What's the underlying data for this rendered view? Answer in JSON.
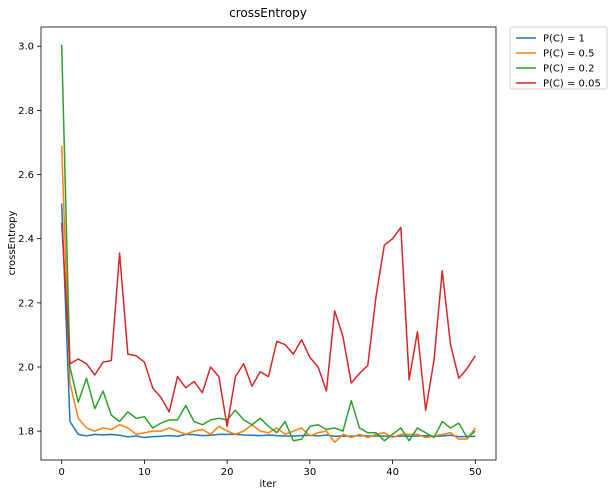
{
  "chart_data": {
    "type": "line",
    "title": "crossEntropy",
    "xlabel": "iter",
    "ylabel": "crossEntropy",
    "xlim": [
      -2.5,
      52.5
    ],
    "ylim": [
      1.71,
      3.06
    ],
    "xticks": [
      0,
      10,
      20,
      30,
      40,
      50
    ],
    "yticks": [
      1.8,
      2.0,
      2.2,
      2.4,
      2.6,
      2.8,
      3.0
    ],
    "grid": false,
    "legend_position": "outside-top-right",
    "x": [
      0,
      1,
      2,
      3,
      4,
      5,
      6,
      7,
      8,
      9,
      10,
      11,
      12,
      13,
      14,
      15,
      16,
      17,
      18,
      19,
      20,
      21,
      22,
      23,
      24,
      25,
      26,
      27,
      28,
      29,
      30,
      31,
      32,
      33,
      34,
      35,
      36,
      37,
      38,
      39,
      40,
      41,
      42,
      43,
      44,
      45,
      46,
      47,
      48,
      49,
      50
    ],
    "series": [
      {
        "name": "P(C) = 1",
        "color": "#1f77b4",
        "values": [
          2.51,
          1.83,
          1.79,
          1.785,
          1.79,
          1.788,
          1.79,
          1.787,
          1.782,
          1.785,
          1.78,
          1.783,
          1.784,
          1.786,
          1.784,
          1.79,
          1.789,
          1.786,
          1.787,
          1.79,
          1.79,
          1.79,
          1.788,
          1.787,
          1.786,
          1.788,
          1.786,
          1.785,
          1.785,
          1.786,
          1.787,
          1.785,
          1.788,
          1.784,
          1.785,
          1.784,
          1.786,
          1.785,
          1.785,
          1.785,
          1.783,
          1.785,
          1.784,
          1.785,
          1.786,
          1.784,
          1.785,
          1.787,
          1.783,
          1.783,
          1.784
        ]
      },
      {
        "name": "P(C) = 0.5",
        "color": "#ff7f0e",
        "values": [
          2.69,
          1.95,
          1.84,
          1.81,
          1.8,
          1.81,
          1.805,
          1.82,
          1.81,
          1.79,
          1.795,
          1.8,
          1.8,
          1.81,
          1.8,
          1.79,
          1.8,
          1.805,
          1.79,
          1.815,
          1.8,
          1.79,
          1.8,
          1.82,
          1.8,
          1.795,
          1.81,
          1.79,
          1.8,
          1.81,
          1.785,
          1.795,
          1.8,
          1.765,
          1.79,
          1.78,
          1.79,
          1.78,
          1.79,
          1.795,
          1.78,
          1.79,
          1.79,
          1.79,
          1.78,
          1.785,
          1.79,
          1.795,
          1.775,
          1.775,
          1.81
        ]
      },
      {
        "name": "P(C) = 0.2",
        "color": "#2ca02c",
        "values": [
          3.005,
          2.0,
          1.89,
          1.965,
          1.87,
          1.925,
          1.85,
          1.83,
          1.86,
          1.84,
          1.845,
          1.81,
          1.825,
          1.835,
          1.835,
          1.88,
          1.83,
          1.82,
          1.835,
          1.84,
          1.835,
          1.865,
          1.835,
          1.82,
          1.84,
          1.815,
          1.795,
          1.83,
          1.77,
          1.775,
          1.815,
          1.82,
          1.805,
          1.81,
          1.8,
          1.895,
          1.81,
          1.795,
          1.795,
          1.77,
          1.79,
          1.81,
          1.77,
          1.81,
          1.795,
          1.78,
          1.83,
          1.81,
          1.825,
          1.78,
          1.8
        ]
      },
      {
        "name": "P(C) = 0.05",
        "color": "#d62728",
        "values": [
          2.45,
          2.01,
          2.025,
          2.01,
          1.975,
          2.015,
          2.02,
          2.355,
          2.04,
          2.035,
          2.015,
          1.935,
          1.905,
          1.86,
          1.97,
          1.935,
          1.955,
          1.92,
          2.0,
          1.97,
          1.815,
          1.97,
          2.01,
          1.94,
          1.985,
          1.97,
          2.08,
          2.07,
          2.04,
          2.085,
          2.03,
          2.0,
          1.925,
          2.175,
          2.095,
          1.95,
          1.98,
          2.005,
          2.22,
          2.38,
          2.4,
          2.435,
          1.96,
          2.11,
          1.865,
          2.02,
          2.3,
          2.07,
          1.965,
          1.995,
          2.035
        ]
      }
    ]
  }
}
